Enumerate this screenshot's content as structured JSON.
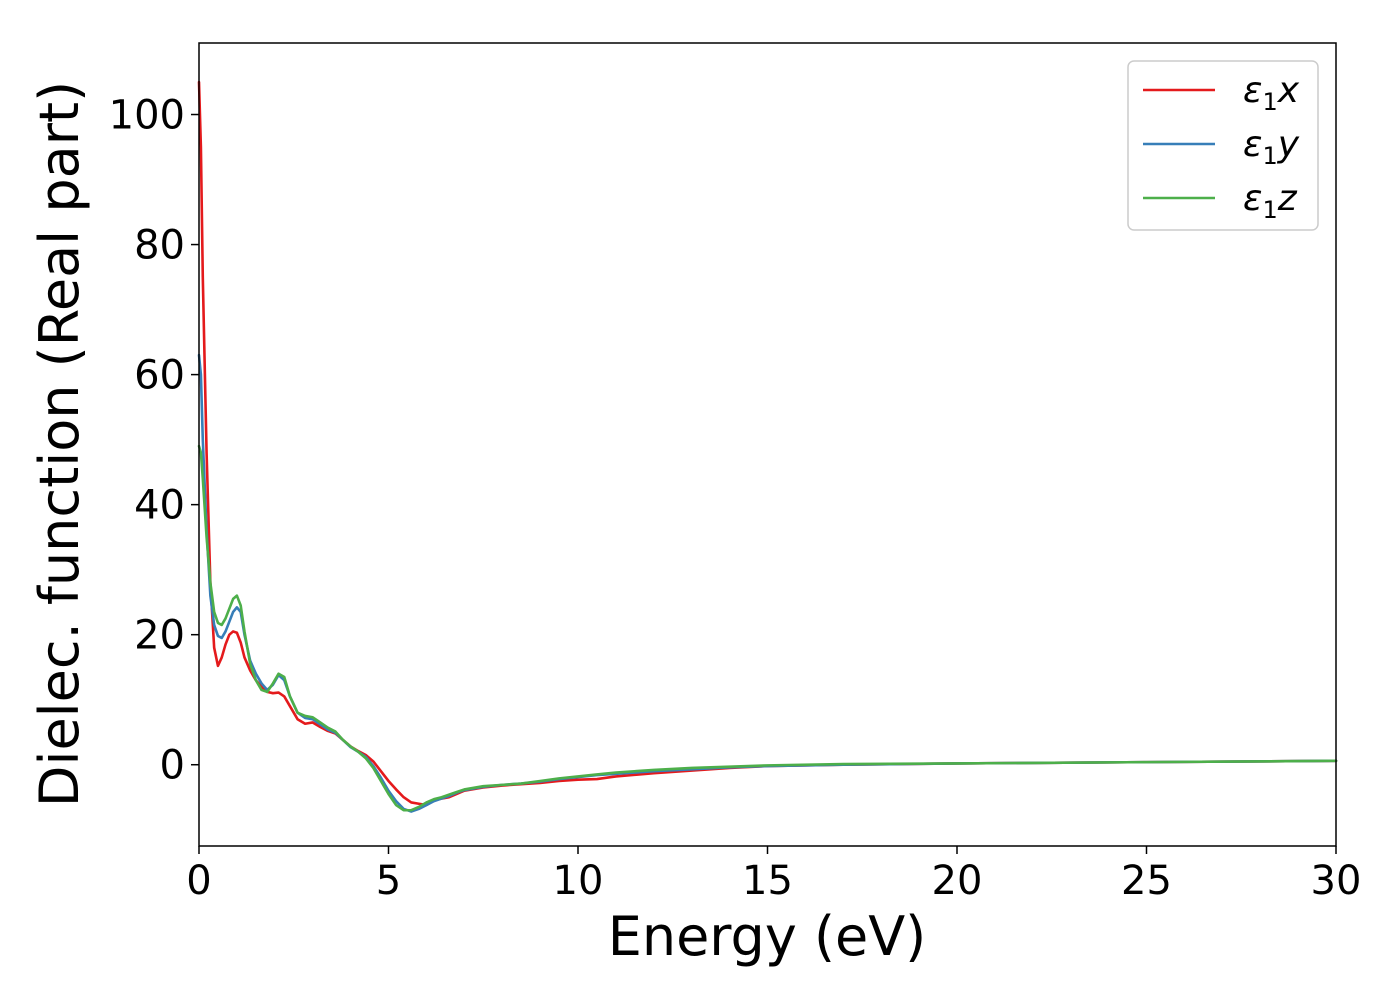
{
  "chart_data": {
    "type": "line",
    "title": "",
    "xlabel": "Energy (eV)",
    "ylabel": "Dielec. function (Real part)",
    "xlim": [
      0,
      30
    ],
    "ylim": [
      -12.5,
      111
    ],
    "xticks": [
      0,
      5,
      10,
      15,
      20,
      25,
      30
    ],
    "yticks": [
      0,
      20,
      40,
      60,
      80,
      100
    ],
    "grid": false,
    "legend_position": "top-right",
    "series": [
      {
        "name": "ε1x",
        "legend": {
          "base": "ε",
          "sub": "1",
          "var": "x"
        },
        "color": "#e41a1c",
        "x": [
          0,
          0.05,
          0.1,
          0.2,
          0.3,
          0.4,
          0.5,
          0.6,
          0.7,
          0.8,
          0.9,
          1.0,
          1.1,
          1.2,
          1.35,
          1.5,
          1.65,
          1.8,
          1.95,
          2.1,
          2.25,
          2.4,
          2.6,
          2.8,
          3.0,
          3.2,
          3.4,
          3.6,
          3.8,
          4.0,
          4.2,
          4.4,
          4.6,
          4.8,
          5.0,
          5.2,
          5.4,
          5.6,
          5.8,
          6.0,
          6.2,
          6.4,
          6.6,
          6.8,
          7.0,
          7.5,
          8.0,
          8.5,
          9.0,
          9.5,
          10.0,
          10.5,
          11.0,
          12.0,
          13.0,
          14.0,
          15.0,
          17.0,
          20.0,
          25.0,
          30.0
        ],
        "y": [
          105,
          95,
          75,
          48,
          28,
          18,
          15.2,
          16.5,
          18.5,
          20,
          20.5,
          20.3,
          18.8,
          16.5,
          14.5,
          13,
          12,
          11.2,
          11,
          11.1,
          10.5,
          9,
          7,
          6.3,
          6.5,
          5.8,
          5.2,
          4.8,
          3.8,
          2.8,
          2.1,
          1.5,
          0.5,
          -1,
          -2.5,
          -3.8,
          -5,
          -5.8,
          -6,
          -6.2,
          -5.5,
          -5.2,
          -5,
          -4.5,
          -4,
          -3.5,
          -3.2,
          -3,
          -2.8,
          -2.5,
          -2.3,
          -2.2,
          -1.8,
          -1.3,
          -0.9,
          -0.5,
          -0.2,
          0.0,
          0.2,
          0.4,
          0.6
        ]
      },
      {
        "name": "ε1y",
        "legend": {
          "base": "ε",
          "sub": "1",
          "var": "y"
        },
        "color": "#377eb8",
        "x": [
          0,
          0.05,
          0.1,
          0.2,
          0.3,
          0.4,
          0.5,
          0.6,
          0.7,
          0.8,
          0.9,
          1.0,
          1.1,
          1.2,
          1.35,
          1.5,
          1.65,
          1.8,
          1.95,
          2.1,
          2.25,
          2.4,
          2.6,
          2.8,
          3.0,
          3.2,
          3.4,
          3.6,
          3.8,
          4.0,
          4.2,
          4.4,
          4.6,
          4.8,
          5.0,
          5.2,
          5.4,
          5.6,
          5.8,
          6.0,
          6.2,
          6.4,
          6.6,
          6.8,
          7.0,
          7.5,
          8.0,
          8.5,
          9.0,
          9.5,
          10.0,
          10.5,
          11.0,
          12.0,
          13.0,
          14.0,
          15.0,
          17.0,
          20.0,
          25.0,
          30.0
        ],
        "y": [
          63,
          60,
          50,
          36,
          26,
          21.5,
          19.8,
          19.5,
          20.5,
          22,
          23.5,
          24.2,
          23.5,
          20,
          16,
          14,
          12.5,
          11.5,
          12.3,
          13.8,
          13,
          10.5,
          8,
          7.2,
          7,
          6.2,
          5.4,
          4.9,
          3.8,
          2.7,
          2,
          1.2,
          -0.2,
          -2,
          -4,
          -5.6,
          -6.8,
          -7.2,
          -6.8,
          -6.2,
          -5.6,
          -5.2,
          -4.8,
          -4.3,
          -3.9,
          -3.4,
          -3.1,
          -2.9,
          -2.6,
          -2.2,
          -1.9,
          -1.6,
          -1.4,
          -1.0,
          -0.7,
          -0.4,
          -0.2,
          0.0,
          0.2,
          0.4,
          0.6
        ]
      },
      {
        "name": "ε1z",
        "legend": {
          "base": "ε",
          "sub": "1",
          "var": "z"
        },
        "color": "#4daf4a",
        "x": [
          0,
          0.05,
          0.1,
          0.2,
          0.3,
          0.4,
          0.5,
          0.6,
          0.7,
          0.8,
          0.9,
          1.0,
          1.1,
          1.2,
          1.35,
          1.5,
          1.65,
          1.8,
          1.95,
          2.1,
          2.25,
          2.4,
          2.6,
          2.8,
          3.0,
          3.2,
          3.4,
          3.6,
          3.8,
          4.0,
          4.2,
          4.4,
          4.6,
          4.8,
          5.0,
          5.2,
          5.4,
          5.6,
          5.8,
          6.0,
          6.2,
          6.4,
          6.6,
          6.8,
          7.0,
          7.5,
          8.0,
          8.5,
          9.0,
          9.5,
          10.0,
          10.5,
          11.0,
          12.0,
          13.0,
          14.0,
          15.0,
          17.0,
          20.0,
          25.0,
          30.0
        ],
        "y": [
          49,
          48,
          44,
          35,
          28,
          23.5,
          21.8,
          21.5,
          22.5,
          24,
          25.5,
          26,
          24.5,
          20.5,
          15.5,
          13,
          11.5,
          11.2,
          12.5,
          14,
          13.5,
          10.5,
          8,
          7.5,
          7.3,
          6.5,
          5.7,
          5.1,
          3.8,
          2.8,
          2,
          1.0,
          -0.5,
          -2.5,
          -4.5,
          -6.2,
          -7.0,
          -7.0,
          -6.5,
          -5.8,
          -5.3,
          -5.0,
          -4.6,
          -4.2,
          -3.8,
          -3.3,
          -3.1,
          -2.9,
          -2.5,
          -2.1,
          -1.8,
          -1.5,
          -1.2,
          -0.8,
          -0.5,
          -0.3,
          -0.1,
          0.1,
          0.2,
          0.4,
          0.6
        ]
      }
    ]
  }
}
